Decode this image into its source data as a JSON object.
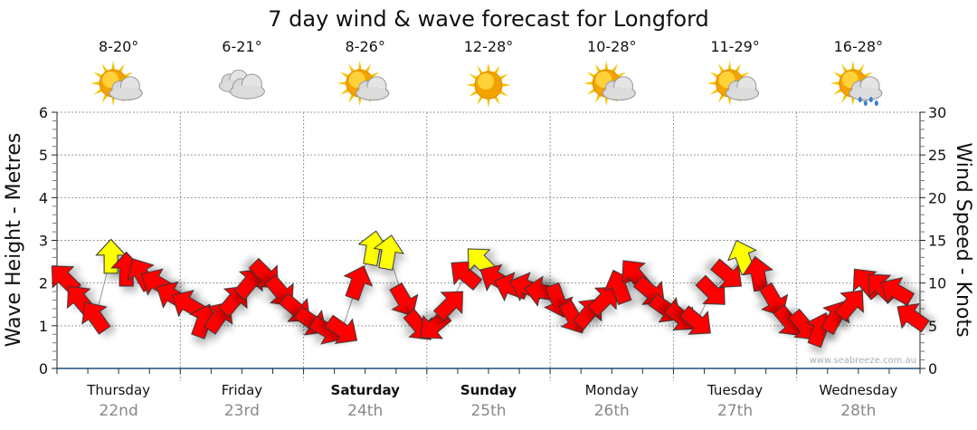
{
  "chart_data": {
    "type": "scatter",
    "title": "7 day wind & wave forecast for Longford",
    "ylabel_left": "Wave Height - Metres",
    "ylabel_right": "Wind Speed - Knots",
    "ylim_left": [
      0,
      6
    ],
    "ylim_right": [
      0,
      30
    ],
    "yticks_left": [
      "0",
      "1",
      "2",
      "3",
      "4",
      "5",
      "6"
    ],
    "yticks_right": [
      "0",
      "5",
      "10",
      "15",
      "20",
      "25",
      "30"
    ],
    "grid": true,
    "watermark": "www.seabreeze.com.au",
    "colors": {
      "wind_low": "#ff0000",
      "wind_high": "#ffff00",
      "axis": "#1f4e79",
      "date": "#888888"
    },
    "days": [
      {
        "day": "Thursday",
        "date": "22nd",
        "temp": "8-20°",
        "icon": "sun-cloud-icon",
        "bold": false
      },
      {
        "day": "Friday",
        "date": "23rd",
        "temp": "6-21°",
        "icon": "cloud-icon",
        "bold": false
      },
      {
        "day": "Saturday",
        "date": "24th",
        "temp": "8-26°",
        "icon": "sun-cloud-icon",
        "bold": true
      },
      {
        "day": "Sunday",
        "date": "25th",
        "temp": "12-28°",
        "icon": "sun-icon",
        "bold": true
      },
      {
        "day": "Monday",
        "date": "26th",
        "temp": "10-28°",
        "icon": "sun-cloud-icon",
        "bold": false
      },
      {
        "day": "Tuesday",
        "date": "27th",
        "temp": "11-29°",
        "icon": "sun-cloud-icon",
        "bold": false
      },
      {
        "day": "Wednesday",
        "date": "28th",
        "temp": "16-28°",
        "icon": "rain-icon",
        "bold": false
      }
    ],
    "wind_knots": [
      [
        10.5,
        8,
        6,
        13,
        11.5,
        11,
        10,
        8.5
      ],
      [
        7.5,
        5.5,
        6,
        8,
        10,
        11,
        9,
        7
      ],
      [
        5.5,
        4.5,
        4.5,
        10,
        14,
        13.5,
        8,
        5
      ],
      [
        5,
        7.5,
        11,
        12.5,
        10.5,
        9.5,
        9.5,
        9
      ],
      [
        8,
        6,
        6.5,
        8,
        9.5,
        11,
        9,
        7
      ],
      [
        6,
        5.5,
        9,
        11,
        13,
        11,
        8,
        5.5
      ],
      [
        5,
        4.5,
        6,
        7.5,
        10,
        9.5,
        9,
        6
      ]
    ],
    "wind_direction_deg": [
      [
        315,
        320,
        325,
        0,
        0,
        330,
        300,
        300
      ],
      [
        300,
        20,
        35,
        40,
        40,
        135,
        140,
        130
      ],
      [
        125,
        120,
        125,
        20,
        10,
        10,
        150,
        140
      ],
      [
        230,
        45,
        310,
        315,
        300,
        290,
        290,
        280
      ],
      [
        160,
        150,
        40,
        45,
        340,
        320,
        130,
        125
      ],
      [
        130,
        130,
        135,
        130,
        340,
        350,
        150,
        140
      ],
      [
        140,
        20,
        30,
        40,
        320,
        315,
        300,
        305
      ]
    ],
    "yellow_threshold_knots": 12.5
  }
}
